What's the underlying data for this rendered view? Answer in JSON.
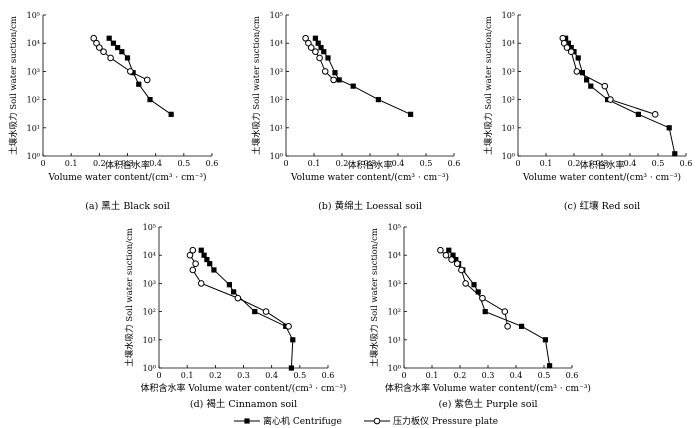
{
  "figure": {
    "x_label_cn": "体积含水率",
    "x_label_en": "Volume water content/(cm³ · cm⁻³)",
    "x_label_full": "体积含水率 Volume water content/(cm³ · cm⁻³)",
    "y_label": "土壤水吸力 Soil water suction/cm",
    "legend": [
      {
        "label": "离心机 Centrifuge",
        "marker": "filled-square"
      },
      {
        "label": "压力板仪 Pressure plate",
        "marker": "open-circle"
      }
    ],
    "colors": {
      "line": "#000000",
      "background": "#ffffff"
    }
  },
  "chart_data": [
    {
      "type": "line",
      "title": "(a) 黑土 Black soil",
      "xlabel": "体积含水率\nVolume water content/(cm³ · cm⁻³)",
      "ylabel": "土壤水吸力 Soil water suction/cm",
      "yscale": "log",
      "xlim": [
        0,
        0.6
      ],
      "ylim_exp": [
        0,
        5
      ],
      "xticks": [
        "0",
        "0.1",
        "0.2",
        "0.3",
        "0.4",
        "0.5",
        "0.6"
      ],
      "yticks": [
        "10⁰",
        "10¹",
        "10²",
        "10³",
        "10⁴",
        "10⁵"
      ],
      "series": [
        {
          "name": "离心机 Centrifuge",
          "x": [
            0.235,
            0.25,
            0.265,
            0.28,
            0.3,
            0.32,
            0.34,
            0.38,
            0.455
          ],
          "y": [
            15000,
            10000,
            7000,
            5000,
            3000,
            900,
            350,
            100,
            30
          ]
        },
        {
          "name": "压力板仪 Pressure plate",
          "x": [
            0.18,
            0.19,
            0.2,
            0.215,
            0.24,
            0.31,
            0.37
          ],
          "y": [
            15000,
            10000,
            7000,
            5000,
            3000,
            1000,
            500
          ]
        }
      ]
    },
    {
      "type": "line",
      "title": "(b) 黄绵土 Loessal soil",
      "xlabel": "体积含水率\nVolume water content/(cm³ · cm⁻³)",
      "ylabel": "土壤水吸力 Soil water suction/cm",
      "yscale": "log",
      "xlim": [
        0,
        0.6
      ],
      "ylim_exp": [
        0,
        5
      ],
      "xticks": [
        "0",
        "0.1",
        "0.2",
        "0.3",
        "0.4",
        "0.5",
        "0.6"
      ],
      "yticks": [
        "10⁰",
        "10¹",
        "10²",
        "10³",
        "10⁴",
        "10⁵"
      ],
      "series": [
        {
          "name": "离心机 Centrifuge",
          "x": [
            0.105,
            0.115,
            0.125,
            0.135,
            0.15,
            0.175,
            0.19,
            0.24,
            0.33,
            0.445
          ],
          "y": [
            15000,
            10000,
            7000,
            5000,
            3000,
            900,
            500,
            300,
            100,
            30
          ]
        },
        {
          "name": "压力板仪 Pressure plate",
          "x": [
            0.07,
            0.08,
            0.09,
            0.105,
            0.12,
            0.14,
            0.17
          ],
          "y": [
            15000,
            10000,
            7000,
            5000,
            3000,
            1000,
            500
          ]
        }
      ]
    },
    {
      "type": "line",
      "title": "(c) 红壤 Red soil",
      "xlabel": "体积含水率\nVolume water content/(cm³ · cm⁻³)",
      "ylabel": "土壤水吸力 Soil water suction/cm",
      "yscale": "log",
      "xlim": [
        0,
        0.6
      ],
      "ylim_exp": [
        0,
        5
      ],
      "xticks": [
        "0",
        "0.1",
        "0.2",
        "0.3",
        "0.4",
        "0.5",
        "0.6"
      ],
      "yticks": [
        "10⁰",
        "10¹",
        "10²",
        "10³",
        "10⁴",
        "10⁵"
      ],
      "series": [
        {
          "name": "离心机 Centrifuge",
          "x": [
            0.17,
            0.18,
            0.19,
            0.2,
            0.215,
            0.23,
            0.245,
            0.26,
            0.32,
            0.43,
            0.54,
            0.56
          ],
          "y": [
            15000,
            10000,
            7000,
            5000,
            3000,
            900,
            500,
            300,
            100,
            30,
            10,
            1.2
          ]
        },
        {
          "name": "压力板仪 Pressure plate",
          "x": [
            0.16,
            0.165,
            0.175,
            0.19,
            0.21,
            0.31,
            0.33,
            0.49
          ],
          "y": [
            15000,
            10000,
            7000,
            5000,
            1000,
            300,
            100,
            30
          ]
        }
      ]
    },
    {
      "type": "line",
      "title": "(d) 褐土 Cinnamon soil",
      "xlabel": "体积含水率 Volume water content/(cm³ · cm⁻³)",
      "ylabel": "土壤水吸力 Soil water suction/cm",
      "yscale": "log",
      "xlim": [
        0,
        0.6
      ],
      "ylim_exp": [
        0,
        5
      ],
      "xticks": [
        "0",
        "0.1",
        "0.2",
        "0.3",
        "0.4",
        "0.5",
        "0.6"
      ],
      "yticks": [
        "10⁰",
        "10¹",
        "10²",
        "10³",
        "10⁴",
        "10⁵"
      ],
      "series": [
        {
          "name": "离心机 Centrifuge",
          "x": [
            0.15,
            0.16,
            0.17,
            0.18,
            0.195,
            0.25,
            0.265,
            0.34,
            0.45,
            0.475,
            0.47
          ],
          "y": [
            15000,
            10000,
            7000,
            5000,
            3000,
            900,
            500,
            100,
            30,
            10,
            1
          ]
        },
        {
          "name": "压力板仪 Pressure plate",
          "x": [
            0.12,
            0.11,
            0.13,
            0.12,
            0.15,
            0.28,
            0.38,
            0.46
          ],
          "y": [
            15000,
            10000,
            5000,
            3000,
            1000,
            300,
            100,
            30
          ]
        }
      ]
    },
    {
      "type": "line",
      "title": "(e) 紫色土 Purple soil",
      "xlabel": "体积含水率 Volume water content/(cm³ · cm⁻³)",
      "ylabel": "土壤水吸力 Soil water suction/cm",
      "yscale": "log",
      "xlim": [
        0,
        0.6
      ],
      "ylim_exp": [
        0,
        5
      ],
      "xticks": [
        "0",
        "0.1",
        "0.2",
        "0.3",
        "0.4",
        "0.5",
        "0.6"
      ],
      "yticks": [
        "10⁰",
        "10¹",
        "10²",
        "10³",
        "10⁴",
        "10⁵"
      ],
      "series": [
        {
          "name": "离心机 Centrifuge",
          "x": [
            0.16,
            0.175,
            0.185,
            0.195,
            0.21,
            0.25,
            0.265,
            0.29,
            0.42,
            0.505,
            0.52
          ],
          "y": [
            15000,
            10000,
            7000,
            5000,
            3000,
            900,
            500,
            100,
            30,
            10,
            1.2
          ]
        },
        {
          "name": "压力板仪 Pressure plate",
          "x": [
            0.13,
            0.15,
            0.17,
            0.19,
            0.205,
            0.22,
            0.28,
            0.36,
            0.37
          ],
          "y": [
            15000,
            10000,
            7000,
            5000,
            3000,
            1000,
            300,
            100,
            30
          ]
        }
      ]
    }
  ]
}
